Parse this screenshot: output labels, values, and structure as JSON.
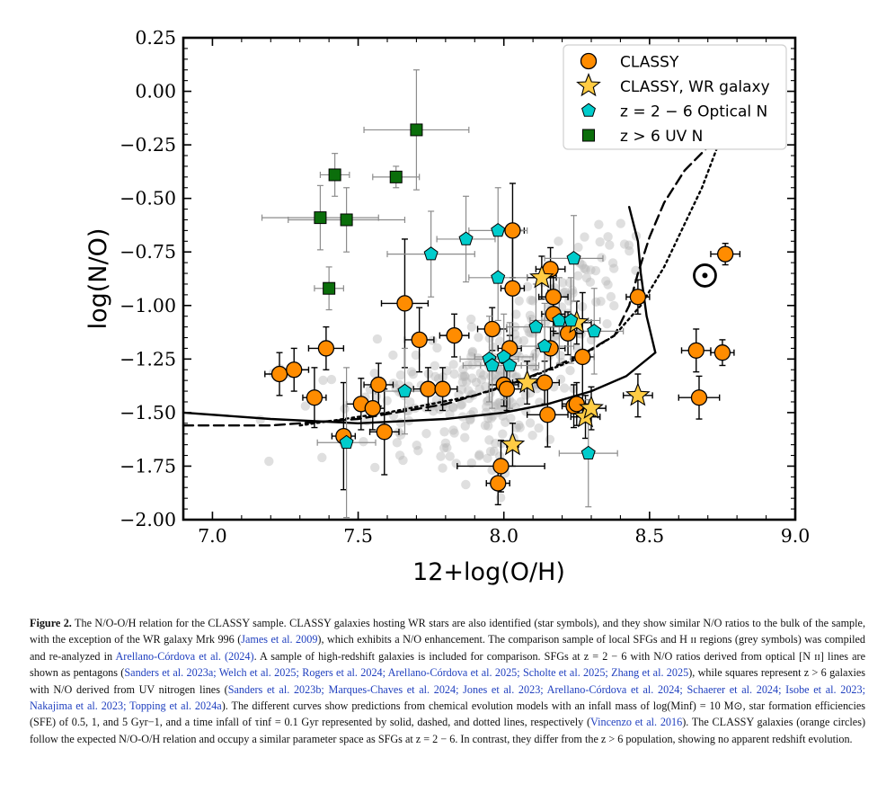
{
  "chart_data": {
    "type": "scatter",
    "xlabel": "12+log(O/H)",
    "ylabel": "log(N/O)",
    "xlim": [
      6.9,
      9.0
    ],
    "ylim": [
      -2.0,
      0.25
    ],
    "xticks": [
      "7.0",
      "7.5",
      "8.0",
      "8.5",
      "9.0"
    ],
    "yticks": [
      "0.25",
      "0.00",
      "−0.25",
      "−0.50",
      "−0.75",
      "−1.00",
      "−1.25",
      "−1.50",
      "−1.75",
      "−2.00"
    ],
    "legend_position": "top-right",
    "legend": [
      {
        "label": "CLASSY",
        "marker": "circle",
        "color": "#ff8c00"
      },
      {
        "label": "CLASSY, WR galaxy",
        "marker": "star",
        "color": "#ffcc44"
      },
      {
        "label": "z = 2 − 6 Optical N",
        "marker": "pentagon",
        "color": "#00cccc"
      },
      {
        "label": "z > 6 UV N",
        "marker": "square",
        "color": "#0b6e0b"
      }
    ],
    "sun_symbol": {
      "x": 8.69,
      "y": -0.86
    },
    "series": [
      {
        "name": "CLASSY",
        "color": "#ff8c00",
        "points": [
          {
            "x": 7.23,
            "y": -1.32,
            "xerr": 0.05,
            "yerr": 0.1
          },
          {
            "x": 7.28,
            "y": -1.3,
            "xerr": 0.05,
            "yerr": 0.1
          },
          {
            "x": 7.35,
            "y": -1.43,
            "xerr": 0.04,
            "yerr": 0.14
          },
          {
            "x": 7.39,
            "y": -1.2,
            "xerr": 0.06,
            "yerr": 0.1
          },
          {
            "x": 7.45,
            "y": -1.61,
            "xerr": 0.04,
            "yerr": 0.25
          },
          {
            "x": 7.51,
            "y": -1.46,
            "xerr": 0.05,
            "yerr": 0.12
          },
          {
            "x": 7.55,
            "y": -1.48,
            "xerr": 0.04,
            "yerr": 0.1
          },
          {
            "x": 7.57,
            "y": -1.37,
            "xerr": 0.05,
            "yerr": 0.1
          },
          {
            "x": 7.59,
            "y": -1.59,
            "xerr": 0.05,
            "yerr": 0.2
          },
          {
            "x": 7.66,
            "y": -0.99,
            "xerr": 0.08,
            "yerr": 0.3
          },
          {
            "x": 7.71,
            "y": -1.16,
            "xerr": 0.05,
            "yerr": 0.15
          },
          {
            "x": 7.74,
            "y": -1.39,
            "xerr": 0.05,
            "yerr": 0.1
          },
          {
            "x": 7.79,
            "y": -1.39,
            "xerr": 0.05,
            "yerr": 0.1
          },
          {
            "x": 7.83,
            "y": -1.14,
            "xerr": 0.05,
            "yerr": 0.1
          },
          {
            "x": 7.96,
            "y": -1.11,
            "xerr": 0.05,
            "yerr": 0.1
          },
          {
            "x": 7.98,
            "y": -1.83,
            "xerr": 0.04,
            "yerr": 0.1
          },
          {
            "x": 7.99,
            "y": -1.75,
            "xerr": 0.15,
            "yerr": 0.12
          },
          {
            "x": 8.0,
            "y": -1.37,
            "xerr": 0.05,
            "yerr": 0.1
          },
          {
            "x": 8.01,
            "y": -1.39,
            "xerr": 0.06,
            "yerr": 0.1
          },
          {
            "x": 8.02,
            "y": -1.2,
            "xerr": 0.04,
            "yerr": 0.06
          },
          {
            "x": 8.03,
            "y": -0.65,
            "xerr": 0.04,
            "yerr": 0.22
          },
          {
            "x": 8.03,
            "y": -0.92,
            "xerr": 0.04,
            "yerr": 0.3
          },
          {
            "x": 8.14,
            "y": -1.36,
            "xerr": 0.05,
            "yerr": 0.1
          },
          {
            "x": 8.15,
            "y": -1.51,
            "xerr": 0.07,
            "yerr": 0.15
          },
          {
            "x": 8.16,
            "y": -1.2,
            "xerr": 0.05,
            "yerr": 0.1
          },
          {
            "x": 8.16,
            "y": -0.83,
            "xerr": 0.05,
            "yerr": 0.1
          },
          {
            "x": 8.17,
            "y": -0.96,
            "xerr": 0.05,
            "yerr": 0.1
          },
          {
            "x": 8.17,
            "y": -1.04,
            "xerr": 0.04,
            "yerr": 0.08
          },
          {
            "x": 8.22,
            "y": -1.13,
            "xerr": 0.05,
            "yerr": 0.1
          },
          {
            "x": 8.24,
            "y": -1.47,
            "xerr": 0.04,
            "yerr": 0.1
          },
          {
            "x": 8.25,
            "y": -1.46,
            "xerr": 0.05,
            "yerr": 0.1
          },
          {
            "x": 8.27,
            "y": -1.24,
            "xerr": 0.04,
            "yerr": 0.3
          },
          {
            "x": 8.46,
            "y": -0.96,
            "xerr": 0.04,
            "yerr": 0.08
          },
          {
            "x": 8.66,
            "y": -1.21,
            "xerr": 0.05,
            "yerr": 0.1
          },
          {
            "x": 8.67,
            "y": -1.43,
            "xerr": 0.07,
            "yerr": 0.1
          },
          {
            "x": 8.75,
            "y": -1.22,
            "xerr": 0.04,
            "yerr": 0.06
          },
          {
            "x": 8.76,
            "y": -0.76,
            "xerr": 0.05,
            "yerr": 0.05
          }
        ]
      },
      {
        "name": "CLASSY, WR galaxy",
        "color": "#ffcc44",
        "points": [
          {
            "x": 8.03,
            "y": -1.65,
            "xerr": 0.02,
            "yerr": 0.1
          },
          {
            "x": 8.08,
            "y": -1.36,
            "xerr": 0.05,
            "yerr": 0.1
          },
          {
            "x": 8.13,
            "y": -0.87,
            "xerr": 0.05,
            "yerr": 0.1
          },
          {
            "x": 8.25,
            "y": -1.08,
            "xerr": 0.05,
            "yerr": 0.1
          },
          {
            "x": 8.28,
            "y": -1.52,
            "xerr": 0.05,
            "yerr": 0.1
          },
          {
            "x": 8.3,
            "y": -1.48,
            "xerr": 0.05,
            "yerr": 0.1
          },
          {
            "x": 8.46,
            "y": -1.42,
            "xerr": 0.05,
            "yerr": 0.1
          }
        ]
      },
      {
        "name": "z = 2 − 6 Optical N",
        "color": "#00cccc",
        "points": [
          {
            "x": 7.46,
            "y": -1.64,
            "xerr": 0.1,
            "yerr": 0.35
          },
          {
            "x": 7.66,
            "y": -1.4,
            "xerr": 0.1,
            "yerr": 0.2
          },
          {
            "x": 7.75,
            "y": -0.76,
            "xerr": 0.15,
            "yerr": 0.2
          },
          {
            "x": 7.87,
            "y": -0.69,
            "xerr": 0.1,
            "yerr": 0.2
          },
          {
            "x": 7.95,
            "y": -1.25,
            "xerr": 0.1,
            "yerr": 0.2
          },
          {
            "x": 7.96,
            "y": -1.28,
            "xerr": 0.1,
            "yerr": 0.2
          },
          {
            "x": 7.98,
            "y": -0.65,
            "xerr": 0.1,
            "yerr": 0.2
          },
          {
            "x": 7.98,
            "y": -0.87,
            "xerr": 0.1,
            "yerr": 0.2
          },
          {
            "x": 8.0,
            "y": -1.24,
            "xerr": 0.1,
            "yerr": 0.2
          },
          {
            "x": 8.02,
            "y": -1.28,
            "xerr": 0.1,
            "yerr": 0.2
          },
          {
            "x": 8.11,
            "y": -1.1,
            "xerr": 0.1,
            "yerr": 0.2
          },
          {
            "x": 8.14,
            "y": -1.19,
            "xerr": 0.1,
            "yerr": 0.2
          },
          {
            "x": 8.19,
            "y": -1.07,
            "xerr": 0.1,
            "yerr": 0.2
          },
          {
            "x": 8.23,
            "y": -1.07,
            "xerr": 0.1,
            "yerr": 0.2
          },
          {
            "x": 8.24,
            "y": -0.78,
            "xerr": 0.1,
            "yerr": 0.2
          },
          {
            "x": 8.29,
            "y": -1.69,
            "xerr": 0.1,
            "yerr": 0.25
          },
          {
            "x": 8.31,
            "y": -1.12,
            "xerr": 0.1,
            "yerr": 0.2
          }
        ]
      },
      {
        "name": "z > 6 UV N",
        "color": "#0b6e0b",
        "points": [
          {
            "x": 7.4,
            "y": -0.92,
            "xerr": 0.05,
            "yerr": 0.1
          },
          {
            "x": 7.37,
            "y": -0.59,
            "xerr": 0.2,
            "yerr": 0.15
          },
          {
            "x": 7.42,
            "y": -0.39,
            "xerr": 0.05,
            "yerr": 0.1
          },
          {
            "x": 7.46,
            "y": -0.6,
            "xerr": 0.2,
            "yerr": 0.15
          },
          {
            "x": 7.63,
            "y": -0.4,
            "xerr": 0.08,
            "yerr": 0.05
          },
          {
            "x": 7.7,
            "y": -0.18,
            "xerr": 0.18,
            "yerr": 0.28
          }
        ]
      }
    ],
    "models": [
      {
        "name": "SFE 0.5 Gyr^-1",
        "style": "solid",
        "x": [
          6.9,
          7.2,
          7.5,
          7.8,
          8.0,
          8.15,
          8.3,
          8.42,
          8.52,
          8.49,
          8.47,
          8.46,
          8.43
        ],
        "y": [
          -1.5,
          -1.53,
          -1.55,
          -1.53,
          -1.5,
          -1.46,
          -1.4,
          -1.33,
          -1.22,
          -1.05,
          -0.85,
          -0.7,
          -0.54
        ]
      },
      {
        "name": "SFE 1 Gyr^-1",
        "style": "dashed",
        "x": [
          6.9,
          7.2,
          7.5,
          7.8,
          8.0,
          8.15,
          8.28,
          8.38,
          8.43,
          8.46,
          8.5,
          8.55,
          8.62,
          8.7
        ],
        "y": [
          -1.56,
          -1.56,
          -1.53,
          -1.46,
          -1.38,
          -1.3,
          -1.22,
          -1.14,
          -1.0,
          -0.85,
          -0.68,
          -0.52,
          -0.37,
          -0.26
        ]
      },
      {
        "name": "SFE 5 Gyr^-1",
        "style": "dotted",
        "x": [
          7.3,
          7.6,
          7.9,
          8.1,
          8.25,
          8.38,
          8.47,
          8.55,
          8.62,
          8.68,
          8.73
        ],
        "y": [
          -1.56,
          -1.5,
          -1.42,
          -1.33,
          -1.25,
          -1.14,
          -1.0,
          -0.82,
          -0.62,
          -0.45,
          -0.27
        ]
      }
    ]
  },
  "caption": {
    "lead": "Figure 2.",
    "p1": " The N/O-O/H relation for the CLASSY sample. CLASSY galaxies hosting WR stars are also identified (star symbols), and they show similar N/O ratios to the bulk of the sample, with the exception of the WR galaxy Mrk 996 (",
    "c1": "James et al. 2009",
    "p2": "), which exhibits a N/O enhancement. The comparison sample of local SFGs and H ɪɪ regions (grey symbols) was compiled and re-analyzed in ",
    "c2": "Arellano-Córdova et al. (2024)",
    "p3": ". A sample of high-redshift galaxies is included for comparison. SFGs at z = 2 − 6 with N/O ratios derived from optical [N ɪɪ] lines are shown as pentagons (",
    "c3": "Sanders et al. 2023a; Welch et al. 2025; Rogers et al. 2024; Arellano-Córdova et al. 2025; Scholte et al. 2025; Zhang et al. 2025",
    "p4": "), while squares represent z > 6 galaxies with N/O derived from UV nitrogen lines (",
    "c4": "Sanders et al. 2023b; Marques-Chaves et al. 2024; Jones et al. 2023; Arellano-Córdova et al. 2024; Schaerer et al. 2024; Isobe et al. 2023; Nakajima et al. 2023; Topping et al. 2024a",
    "p5": "). The different curves show predictions from chemical evolution models with an infall mass of log(Minf) = 10 M⊙, star formation efficiencies (SFE) of 0.5, 1, and 5 Gyr−1, and a time infall of τinf = 0.1 Gyr represented by solid, dashed, and dotted lines, respectively (",
    "c5": "Vincenzo et al. 2016",
    "p6": "). The CLASSY galaxies (orange circles) follow the expected N/O-O/H relation and occupy a similar parameter space as SFGs at z = 2 − 6. In contrast, they differ from the z > 6 population, showing no apparent redshift evolution."
  }
}
